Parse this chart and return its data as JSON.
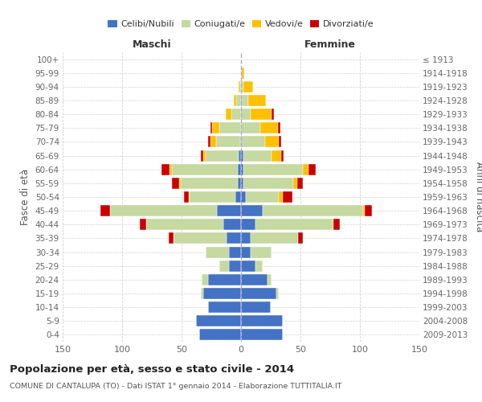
{
  "age_groups": [
    "0-4",
    "5-9",
    "10-14",
    "15-19",
    "20-24",
    "25-29",
    "30-34",
    "35-39",
    "40-44",
    "45-49",
    "50-54",
    "55-59",
    "60-64",
    "65-69",
    "70-74",
    "75-79",
    "80-84",
    "85-89",
    "90-94",
    "95-99",
    "100+"
  ],
  "birth_years": [
    "2009-2013",
    "2004-2008",
    "1999-2003",
    "1994-1998",
    "1989-1993",
    "1984-1988",
    "1979-1983",
    "1974-1978",
    "1969-1973",
    "1964-1968",
    "1959-1963",
    "1954-1958",
    "1949-1953",
    "1944-1948",
    "1939-1943",
    "1934-1938",
    "1929-1933",
    "1924-1928",
    "1919-1923",
    "1914-1918",
    "≤ 1913"
  ],
  "male_celibi": [
    35,
    38,
    28,
    32,
    28,
    10,
    10,
    12,
    15,
    20,
    5,
    3,
    3,
    2,
    1,
    0,
    0,
    0,
    0,
    0,
    0
  ],
  "male_coniugati": [
    0,
    0,
    0,
    2,
    5,
    8,
    20,
    45,
    65,
    90,
    38,
    48,
    55,
    28,
    20,
    18,
    8,
    4,
    1,
    0,
    0
  ],
  "male_vedovi": [
    0,
    0,
    0,
    0,
    0,
    0,
    0,
    0,
    0,
    0,
    1,
    1,
    2,
    2,
    5,
    6,
    5,
    2,
    1,
    0,
    0
  ],
  "male_divorziati": [
    0,
    0,
    0,
    0,
    0,
    0,
    0,
    4,
    5,
    8,
    4,
    6,
    7,
    2,
    2,
    2,
    0,
    0,
    0,
    0,
    0
  ],
  "female_nubili": [
    35,
    35,
    25,
    30,
    22,
    12,
    8,
    8,
    12,
    18,
    4,
    2,
    2,
    2,
    0,
    0,
    0,
    1,
    0,
    0,
    0
  ],
  "female_coniugate": [
    0,
    0,
    0,
    2,
    4,
    6,
    18,
    40,
    65,
    85,
    28,
    42,
    50,
    24,
    20,
    16,
    8,
    5,
    2,
    1,
    0
  ],
  "female_vedove": [
    0,
    0,
    0,
    0,
    0,
    0,
    0,
    0,
    1,
    1,
    3,
    3,
    5,
    8,
    12,
    15,
    18,
    15,
    8,
    2,
    0
  ],
  "female_divorziate": [
    0,
    0,
    0,
    0,
    0,
    0,
    0,
    4,
    5,
    6,
    8,
    5,
    6,
    2,
    2,
    2,
    2,
    0,
    0,
    0,
    0
  ],
  "colors": {
    "celibi": "#4472c4",
    "coniugati": "#c5d9a0",
    "vedovi": "#ffc000",
    "divorziati": "#cc0000"
  },
  "title": "Popolazione per età, sesso e stato civile - 2014",
  "subtitle": "COMUNE DI CANTALUPA (TO) - Dati ISTAT 1° gennaio 2014 - Elaborazione TUTTITALIA.IT",
  "label_maschi": "Maschi",
  "label_femmine": "Femmine",
  "ylabel_left": "Fasce di età",
  "ylabel_right": "Anni di nascita",
  "xlim": 150,
  "bg_color": "#ffffff",
  "grid_color": "#cccccc",
  "legend": [
    "Celibi/Nubili",
    "Coniugati/e",
    "Vedovi/e",
    "Divorziati/e"
  ]
}
